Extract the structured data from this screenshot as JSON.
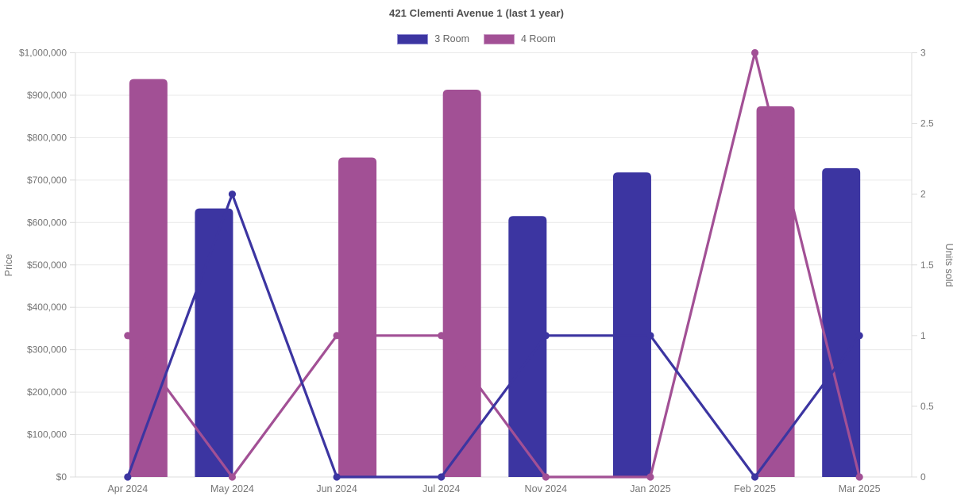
{
  "title": "421 Clementi Avenue 1 (last 1 year)",
  "legend": {
    "items": [
      {
        "label": "3 Room",
        "color": "#3c35a1",
        "border": "#918cd3"
      },
      {
        "label": "4 Room",
        "color": "#a25095",
        "border": "#cb9cc6"
      }
    ]
  },
  "chart_data": {
    "type": "bar+line combo (bars = price on left axis, lines = units sold on right axis)",
    "title": "421 Clementi Avenue 1 (last 1 year)",
    "categories": [
      "Apr 2024",
      "May 2024",
      "Jun 2024",
      "Jul 2024",
      "Nov 2024",
      "Jan 2025",
      "Feb 2025",
      "Mar 2025"
    ],
    "bar_series": [
      {
        "name": "3 Room",
        "axis": "left",
        "color": "#3c35a1",
        "values": [
          null,
          633000,
          null,
          null,
          615000,
          718000,
          null,
          728000
        ]
      },
      {
        "name": "4 Room",
        "axis": "left",
        "color": "#a25095",
        "values": [
          938000,
          null,
          753000,
          913000,
          null,
          null,
          874000,
          null
        ]
      }
    ],
    "line_series": [
      {
        "name": "4 Room",
        "axis": "right",
        "color": "#a25095",
        "values": [
          1,
          0,
          1,
          1,
          0,
          0,
          3,
          0
        ]
      },
      {
        "name": "3 Room",
        "axis": "right",
        "color": "#3c35a1",
        "values": [
          0,
          2,
          0,
          0,
          1,
          1,
          0,
          1
        ]
      }
    ],
    "left_axis": {
      "label": "Price",
      "min": 0,
      "max": 1000000,
      "tick_step": 100000,
      "tick_labels": [
        "$0",
        "$100,000",
        "$200,000",
        "$300,000",
        "$400,000",
        "$500,000",
        "$600,000",
        "$700,000",
        "$800,000",
        "$900,000",
        "$1,000,000"
      ]
    },
    "right_axis": {
      "label": "Units sold",
      "min": 0,
      "max": 3,
      "tick_step": 0.5,
      "tick_labels": [
        "0",
        "0.5",
        "1",
        "1.5",
        "2",
        "2.5",
        "3"
      ]
    },
    "grid": "horizontal only",
    "legend_position": "top",
    "colors": {
      "grid": "#e9e9e9",
      "axis_line": "#dcdcdc",
      "tick_text": "#757575",
      "title_text": "#4e4e4e"
    }
  }
}
